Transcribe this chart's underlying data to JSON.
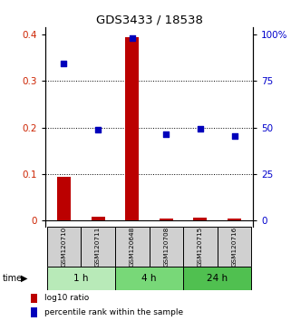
{
  "title": "GDS3433 / 18538",
  "samples": [
    "GSM120710",
    "GSM120711",
    "GSM120648",
    "GSM120708",
    "GSM120715",
    "GSM120716"
  ],
  "log10_ratio": [
    0.095,
    0.008,
    0.393,
    0.004,
    0.007,
    0.004
  ],
  "percentile_rank_left": [
    0.338,
    0.195,
    0.392,
    0.185,
    0.197,
    0.181
  ],
  "time_groups": [
    {
      "label": "1 h",
      "count": 2,
      "color": "#b8eab8"
    },
    {
      "label": "4 h",
      "count": 2,
      "color": "#78d878"
    },
    {
      "label": "24 h",
      "count": 2,
      "color": "#50c050"
    }
  ],
  "left_yticks": [
    0.0,
    0.1,
    0.2,
    0.3,
    0.4
  ],
  "left_yticklabels": [
    "0",
    "0.1",
    "0.2",
    "0.3",
    "0.4"
  ],
  "right_yticks": [
    0,
    25,
    50,
    75,
    100
  ],
  "right_yticklabels": [
    "0",
    "25",
    "50",
    "75",
    "100%"
  ],
  "ylim_left": [
    -0.012,
    0.415
  ],
  "bar_color": "#bb0000",
  "dot_color": "#0000bb",
  "bar_width": 0.4,
  "legend_bar_label": "log10 ratio",
  "legend_dot_label": "percentile rank within the sample",
  "background_color": "#ffffff",
  "tick_label_color_left": "#cc2200",
  "tick_label_color_right": "#0000cc",
  "sample_box_color": "#d0d0d0"
}
